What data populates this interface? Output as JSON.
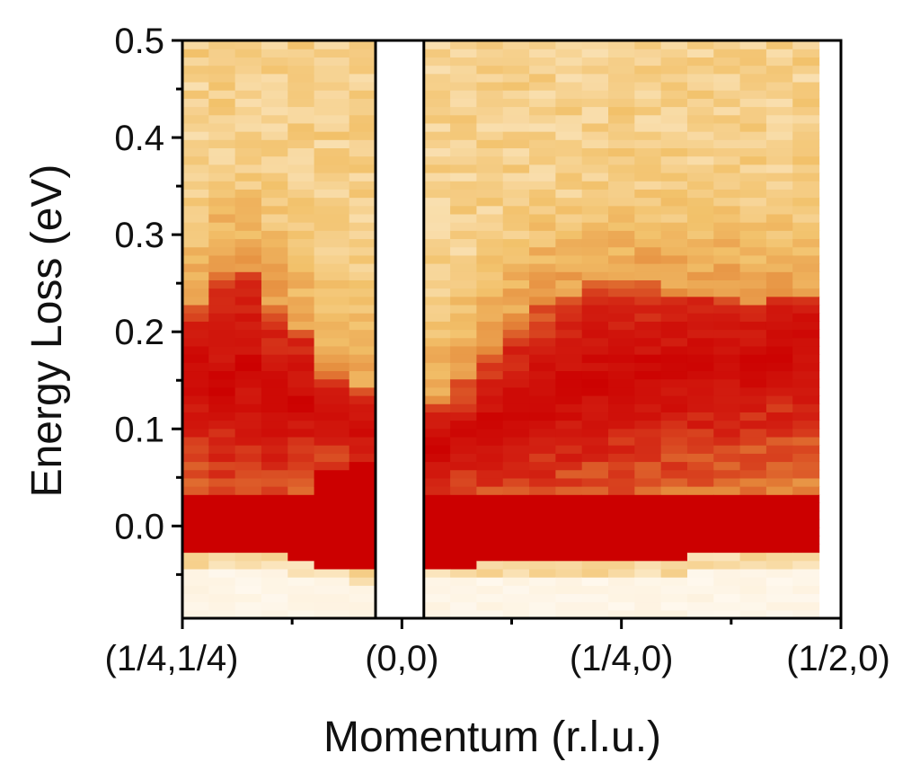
{
  "chart_data": {
    "type": "heatmap",
    "title": "",
    "xlabel": "Momentum (r.l.u.)",
    "ylabel": "Energy Loss (eV)",
    "ylim": [
      -0.095,
      0.5
    ],
    "yticks": [
      0.0,
      0.1,
      0.2,
      0.3,
      0.4,
      0.5
    ],
    "ytick_labels": [
      "0.0",
      "0.1",
      "0.2",
      "0.3",
      "0.4",
      "0.5"
    ],
    "xticks": [
      {
        "label": "(1/4,1/4)",
        "pos": 0.0
      },
      {
        "label": "(0,0)",
        "pos": 1.0
      },
      {
        "label": "(1/4,0)",
        "pos": 2.0
      },
      {
        "label": "(1/2,0)",
        "pos": 3.0
      }
    ],
    "xlim": [
      0.0,
      3.0
    ],
    "gap": [
      0.88,
      1.1
    ],
    "colors": {
      "low": "#fffaf3",
      "pale": "#fbe6bf",
      "mid": "#f2c16a",
      "orange": "#e58a3b",
      "red": "#d21f11",
      "deep": "#cc0000",
      "axis": "#000000"
    },
    "panels": [
      {
        "name": "nodal",
        "columns": [
          {
            "x0": 0.0,
            "x1": 0.12,
            "elastic_top": 0.03,
            "elastic_bottom": -0.025,
            "peak_center": 0.155,
            "peak_top": 0.225
          },
          {
            "x0": 0.12,
            "x1": 0.24,
            "elastic_top": 0.035,
            "elastic_bottom": -0.025,
            "peak_center": 0.15,
            "peak_top": 0.26
          },
          {
            "x0": 0.24,
            "x1": 0.36,
            "elastic_top": 0.03,
            "elastic_bottom": -0.025,
            "peak_center": 0.16,
            "peak_top": 0.26
          },
          {
            "x0": 0.36,
            "x1": 0.48,
            "elastic_top": 0.03,
            "elastic_bottom": -0.03,
            "peak_center": 0.135,
            "peak_top": 0.23
          },
          {
            "x0": 0.48,
            "x1": 0.6,
            "elastic_top": 0.03,
            "elastic_bottom": -0.035,
            "peak_center": 0.13,
            "peak_top": 0.2
          },
          {
            "x0": 0.6,
            "x1": 0.76,
            "elastic_top": 0.06,
            "elastic_bottom": -0.04,
            "peak_center": 0.11,
            "peak_top": 0.16
          },
          {
            "x0": 0.76,
            "x1": 0.88,
            "elastic_top": 0.07,
            "elastic_bottom": -0.045,
            "peak_center": 0.1,
            "peak_top": 0.14
          }
        ]
      },
      {
        "name": "antinodal",
        "columns": [
          {
            "x0": 1.1,
            "x1": 1.22,
            "elastic_top": 0.035,
            "elastic_bottom": -0.04,
            "peak_center": 0.08,
            "peak_top": 0.13
          },
          {
            "x0": 1.22,
            "x1": 1.34,
            "elastic_top": 0.035,
            "elastic_bottom": -0.04,
            "peak_center": 0.09,
            "peak_top": 0.15
          },
          {
            "x0": 1.34,
            "x1": 1.46,
            "elastic_top": 0.035,
            "elastic_bottom": -0.035,
            "peak_center": 0.11,
            "peak_top": 0.18
          },
          {
            "x0": 1.46,
            "x1": 1.58,
            "elastic_top": 0.035,
            "elastic_bottom": -0.035,
            "peak_center": 0.12,
            "peak_top": 0.21
          },
          {
            "x0": 1.58,
            "x1": 1.7,
            "elastic_top": 0.035,
            "elastic_bottom": -0.035,
            "peak_center": 0.13,
            "peak_top": 0.23
          },
          {
            "x0": 1.7,
            "x1": 1.82,
            "elastic_top": 0.035,
            "elastic_bottom": -0.035,
            "peak_center": 0.14,
            "peak_top": 0.24
          },
          {
            "x0": 1.82,
            "x1": 1.94,
            "elastic_top": 0.035,
            "elastic_bottom": -0.035,
            "peak_center": 0.15,
            "peak_top": 0.25
          },
          {
            "x0": 1.94,
            "x1": 2.06,
            "elastic_top": 0.035,
            "elastic_bottom": -0.035,
            "peak_center": 0.15,
            "peak_top": 0.25
          },
          {
            "x0": 2.06,
            "x1": 2.18,
            "elastic_top": 0.035,
            "elastic_bottom": -0.035,
            "peak_center": 0.16,
            "peak_top": 0.25
          },
          {
            "x0": 2.18,
            "x1": 2.3,
            "elastic_top": 0.035,
            "elastic_bottom": -0.035,
            "peak_center": 0.16,
            "peak_top": 0.24
          },
          {
            "x0": 2.3,
            "x1": 2.42,
            "elastic_top": 0.035,
            "elastic_bottom": -0.03,
            "peak_center": 0.16,
            "peak_top": 0.24
          },
          {
            "x0": 2.42,
            "x1": 2.54,
            "elastic_top": 0.035,
            "elastic_bottom": -0.03,
            "peak_center": 0.17,
            "peak_top": 0.24
          },
          {
            "x0": 2.54,
            "x1": 2.66,
            "elastic_top": 0.035,
            "elastic_bottom": -0.03,
            "peak_center": 0.17,
            "peak_top": 0.23
          },
          {
            "x0": 2.66,
            "x1": 2.78,
            "elastic_top": 0.035,
            "elastic_bottom": -0.03,
            "peak_center": 0.18,
            "peak_top": 0.24
          },
          {
            "x0": 2.78,
            "x1": 2.9,
            "elastic_top": 0.035,
            "elastic_bottom": -0.025,
            "peak_center": 0.19,
            "peak_top": 0.24
          }
        ]
      }
    ]
  }
}
